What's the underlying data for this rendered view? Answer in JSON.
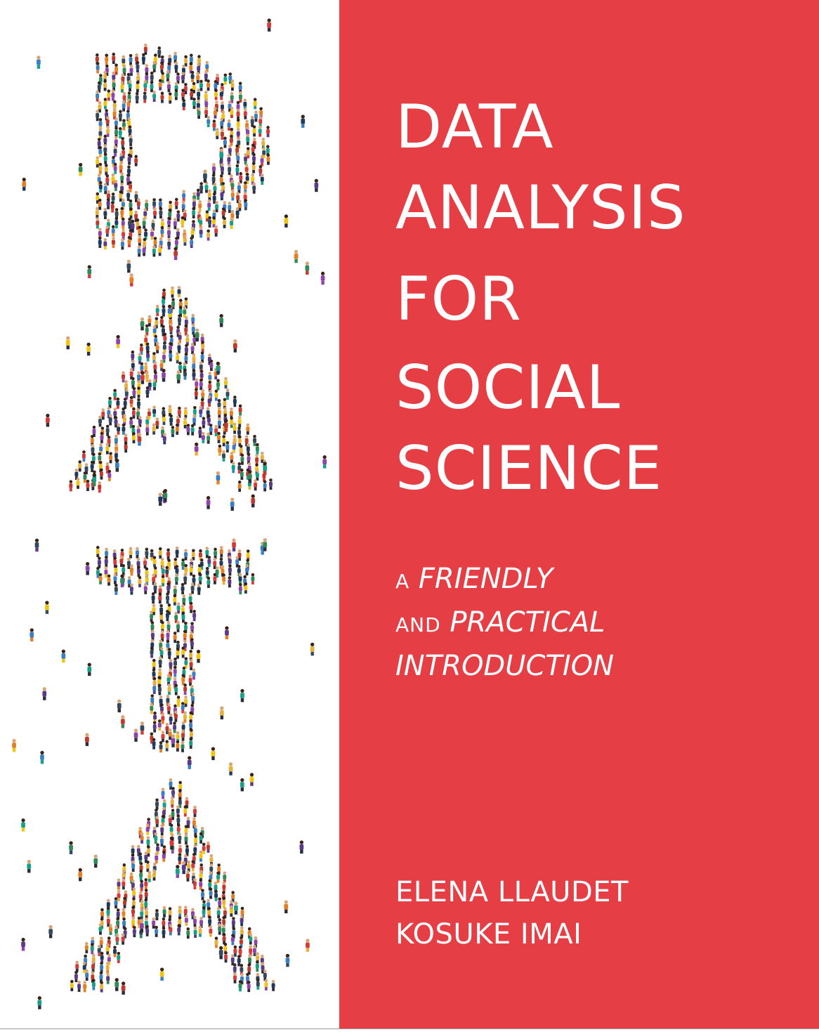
{
  "cover": {
    "title_lines": [
      "DATA",
      "ANALYSIS",
      "FOR",
      "SOCIAL",
      "SCIENCE"
    ],
    "subtitle": {
      "line1_prefix": "A",
      "line1_emph": "FRIENDLY",
      "line2_prefix": "AND",
      "line2_emph": "PRACTICAL",
      "line3_emph": "INTRODUCTION"
    },
    "authors": [
      "ELENA LLAUDET",
      "KOSUKE IMAI"
    ],
    "illustration": {
      "description_icon": "crowd-letters-icon",
      "spelled_letters": [
        "D",
        "A",
        "T",
        "A"
      ]
    },
    "colors": {
      "panel_red": "#E53E45",
      "text": "#FFFFFF",
      "background": "#FFFFFF",
      "people": [
        "#3a7fc4",
        "#e8b23a",
        "#d63b3b",
        "#5a3a8a",
        "#2e8b57",
        "#e67e22",
        "#8e44ad",
        "#1f3a5f",
        "#c0392b",
        "#16a085",
        "#f1c40f",
        "#34495e"
      ]
    }
  }
}
